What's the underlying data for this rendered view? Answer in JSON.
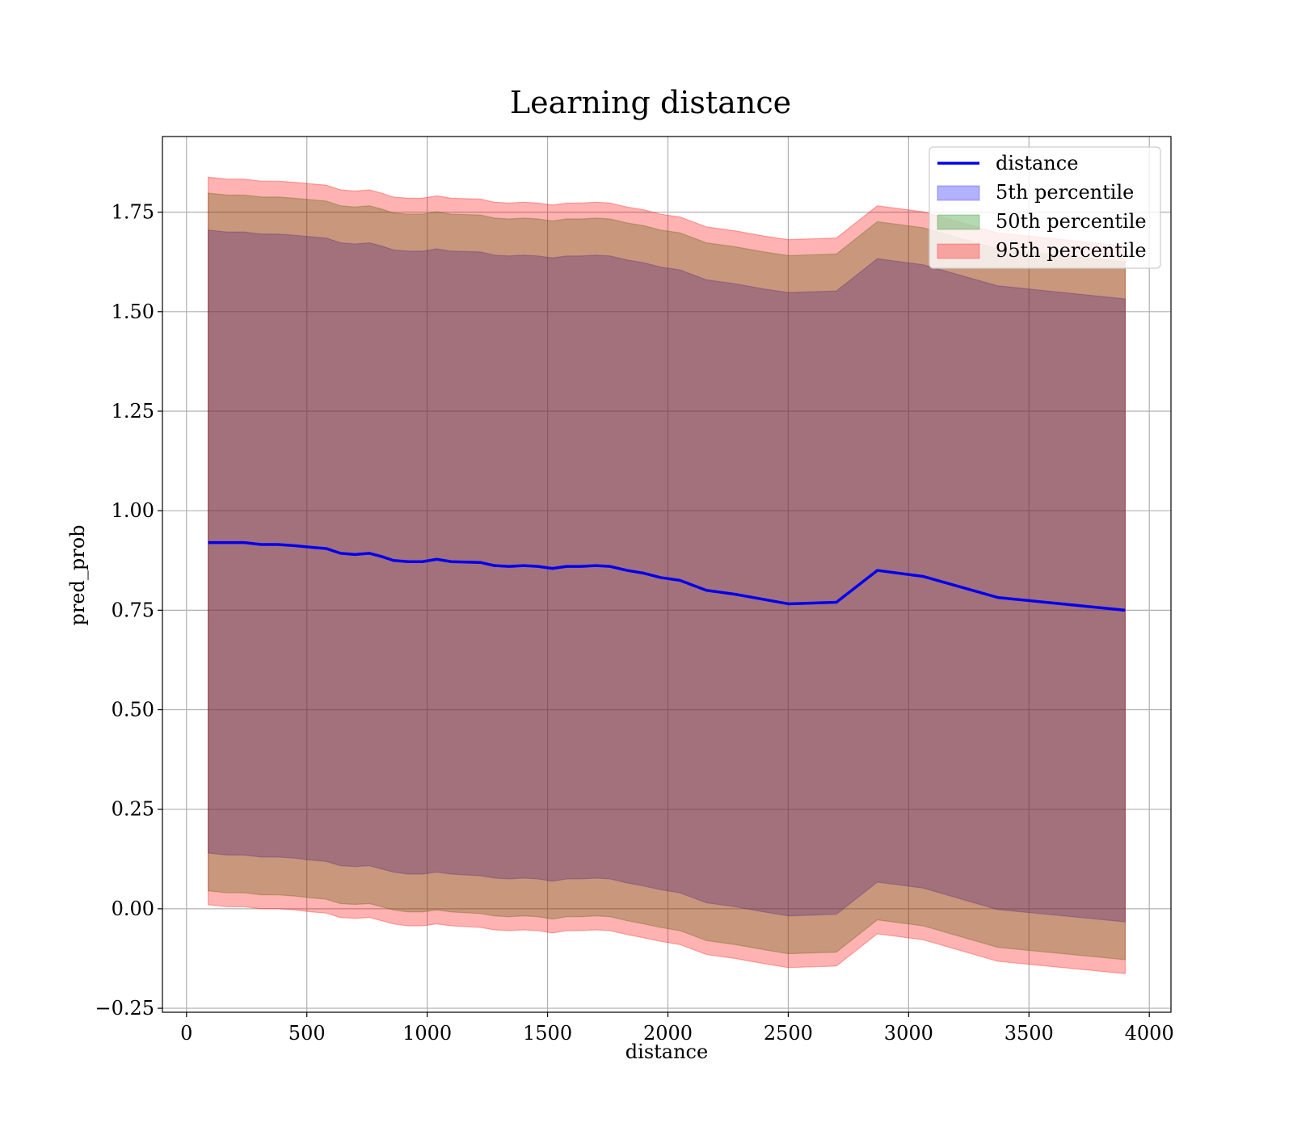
{
  "chart_data": {
    "type": "area",
    "title": "Learning distance",
    "xlabel": "distance",
    "ylabel": "pred_prob",
    "xlim": [
      -100,
      4090
    ],
    "ylim": [
      -0.26,
      1.94
    ],
    "xticks": [
      0,
      500,
      1000,
      1500,
      2000,
      2500,
      3000,
      3500,
      4000
    ],
    "xtick_labels": [
      "0",
      "500",
      "1000",
      "1500",
      "2000",
      "2500",
      "3000",
      "3500",
      "4000"
    ],
    "yticks": [
      -0.25,
      0.0,
      0.25,
      0.5,
      0.75,
      1.0,
      1.25,
      1.5,
      1.75
    ],
    "ytick_labels": [
      "−0.25",
      "0.00",
      "0.25",
      "0.50",
      "0.75",
      "1.00",
      "1.25",
      "1.50",
      "1.75"
    ],
    "grid": true,
    "legend_position": "top-right",
    "x": [
      90,
      170,
      240,
      310,
      380,
      450,
      520,
      580,
      640,
      700,
      760,
      810,
      860,
      920,
      980,
      1040,
      1100,
      1160,
      1220,
      1280,
      1340,
      1400,
      1460,
      1520,
      1580,
      1640,
      1700,
      1760,
      1830,
      1900,
      1970,
      2050,
      2160,
      2280,
      2400,
      2500,
      2700,
      2870,
      3060,
      3370,
      3900
    ],
    "series": [
      {
        "name": "distance",
        "kind": "line",
        "color": "#0000ee",
        "values": [
          0.92,
          0.92,
          0.92,
          0.915,
          0.915,
          0.912,
          0.908,
          0.905,
          0.893,
          0.89,
          0.893,
          0.885,
          0.875,
          0.872,
          0.872,
          0.878,
          0.872,
          0.871,
          0.87,
          0.862,
          0.86,
          0.862,
          0.86,
          0.855,
          0.86,
          0.86,
          0.862,
          0.86,
          0.85,
          0.843,
          0.832,
          0.825,
          0.8,
          0.79,
          0.777,
          0.766,
          0.77,
          0.85,
          0.835,
          0.782,
          0.75
        ]
      },
      {
        "name": "5th percentile",
        "kind": "band",
        "color": "#0000ff",
        "opacity": 0.3,
        "lower": [
          0.14,
          0.135,
          0.135,
          0.13,
          0.13,
          0.127,
          0.122,
          0.119,
          0.108,
          0.106,
          0.108,
          0.1,
          0.092,
          0.087,
          0.087,
          0.092,
          0.087,
          0.085,
          0.083,
          0.077,
          0.075,
          0.077,
          0.075,
          0.069,
          0.075,
          0.075,
          0.077,
          0.075,
          0.065,
          0.057,
          0.048,
          0.04,
          0.015,
          0.005,
          -0.008,
          -0.018,
          -0.014,
          0.067,
          0.052,
          -0.002,
          -0.033
        ],
        "upper": [
          1.705,
          1.7,
          1.7,
          1.695,
          1.695,
          1.692,
          1.688,
          1.685,
          1.673,
          1.67,
          1.673,
          1.665,
          1.655,
          1.652,
          1.652,
          1.658,
          1.652,
          1.651,
          1.65,
          1.642,
          1.64,
          1.642,
          1.64,
          1.635,
          1.64,
          1.64,
          1.642,
          1.64,
          1.63,
          1.623,
          1.612,
          1.605,
          1.58,
          1.57,
          1.557,
          1.548,
          1.552,
          1.633,
          1.618,
          1.565,
          1.532
        ]
      },
      {
        "name": "50th percentile",
        "kind": "band",
        "color": "#008000",
        "opacity": 0.3,
        "lower": [
          0.045,
          0.04,
          0.04,
          0.035,
          0.035,
          0.032,
          0.027,
          0.024,
          0.013,
          0.011,
          0.013,
          0.005,
          -0.003,
          -0.008,
          -0.008,
          -0.003,
          -0.008,
          -0.01,
          -0.012,
          -0.018,
          -0.02,
          -0.018,
          -0.02,
          -0.026,
          -0.02,
          -0.02,
          -0.018,
          -0.02,
          -0.03,
          -0.038,
          -0.047,
          -0.055,
          -0.08,
          -0.09,
          -0.103,
          -0.113,
          -0.109,
          -0.028,
          -0.043,
          -0.097,
          -0.128
        ],
        "upper": [
          1.798,
          1.793,
          1.793,
          1.788,
          1.788,
          1.785,
          1.781,
          1.778,
          1.766,
          1.763,
          1.766,
          1.758,
          1.748,
          1.745,
          1.745,
          1.751,
          1.745,
          1.744,
          1.743,
          1.735,
          1.733,
          1.735,
          1.733,
          1.728,
          1.733,
          1.733,
          1.735,
          1.733,
          1.723,
          1.716,
          1.705,
          1.698,
          1.673,
          1.663,
          1.65,
          1.641,
          1.645,
          1.726,
          1.711,
          1.658,
          1.625
        ]
      },
      {
        "name": "95th percentile",
        "kind": "band",
        "color": "#ff0000",
        "opacity": 0.3,
        "lower": [
          0.01,
          0.005,
          0.005,
          0.0,
          0.0,
          -0.003,
          -0.008,
          -0.011,
          -0.022,
          -0.024,
          -0.022,
          -0.03,
          -0.038,
          -0.043,
          -0.043,
          -0.038,
          -0.043,
          -0.045,
          -0.047,
          -0.053,
          -0.055,
          -0.053,
          -0.055,
          -0.061,
          -0.055,
          -0.055,
          -0.053,
          -0.055,
          -0.065,
          -0.073,
          -0.082,
          -0.09,
          -0.115,
          -0.125,
          -0.138,
          -0.148,
          -0.144,
          -0.063,
          -0.078,
          -0.132,
          -0.163
        ],
        "upper": [
          1.838,
          1.833,
          1.833,
          1.828,
          1.828,
          1.825,
          1.821,
          1.818,
          1.806,
          1.803,
          1.806,
          1.798,
          1.788,
          1.785,
          1.785,
          1.791,
          1.785,
          1.784,
          1.783,
          1.775,
          1.773,
          1.775,
          1.773,
          1.768,
          1.773,
          1.773,
          1.775,
          1.773,
          1.763,
          1.756,
          1.745,
          1.738,
          1.713,
          1.703,
          1.69,
          1.681,
          1.685,
          1.766,
          1.751,
          1.698,
          1.665
        ]
      }
    ]
  }
}
